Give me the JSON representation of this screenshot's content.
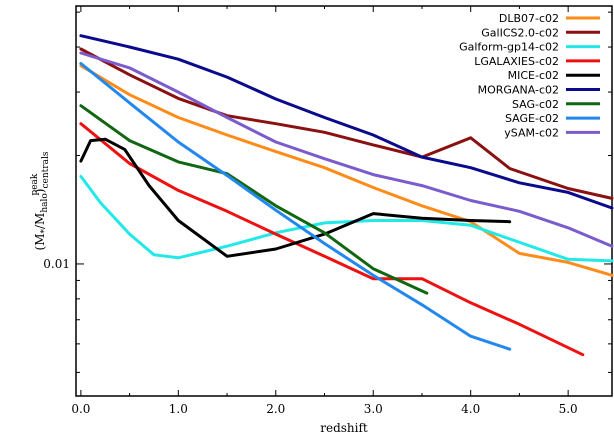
{
  "chart_data": {
    "type": "line",
    "xlabel": "redshift",
    "ylabel": "(M*/Mhalo)peak centrals",
    "ylabel_parts": {
      "base": "(M",
      "star": "*",
      "mid": "/M",
      "halo": "halo",
      "close": ")",
      "sup": "peak",
      "sub": "centrals"
    },
    "x_ticks": [
      0.0,
      1.0,
      2.0,
      3.0,
      4.0,
      5.0
    ],
    "x_tick_labels": [
      "0.0",
      "1.0",
      "2.0",
      "3.0",
      "4.0",
      "5.0"
    ],
    "y_ticks": [
      0.01
    ],
    "y_tick_labels": [
      "0.01"
    ],
    "xlim": [
      -0.05,
      5.45
    ],
    "ylim": [
      0.0043,
      0.052
    ],
    "yscale": "log",
    "grid": false,
    "legend": "top-right",
    "series": [
      {
        "name": "DLB07-c02",
        "color": "#ff8c1a",
        "x": [
          0.0,
          0.5,
          1.0,
          1.5,
          2.0,
          2.5,
          3.0,
          3.5,
          4.0,
          4.5,
          5.0,
          5.45
        ],
        "y": [
          0.0355,
          0.0295,
          0.0255,
          0.0228,
          0.0205,
          0.0185,
          0.0163,
          0.0145,
          0.0131,
          0.0107,
          0.0101,
          0.0093
        ]
      },
      {
        "name": "GalICS2.0-c02",
        "color": "#8b1010",
        "x": [
          0.0,
          0.5,
          1.0,
          1.5,
          2.0,
          2.5,
          3.0,
          3.5,
          4.0,
          4.4,
          5.0,
          5.45
        ],
        "y": [
          0.0395,
          0.0335,
          0.0288,
          0.0258,
          0.0245,
          0.0232,
          0.0214,
          0.0198,
          0.0224,
          0.0184,
          0.0162,
          0.0152
        ]
      },
      {
        "name": "Galform-gp14-c02",
        "color": "#22e8e8",
        "x": [
          0.0,
          0.2,
          0.5,
          0.75,
          1.0,
          1.5,
          2.0,
          2.5,
          3.0,
          3.5,
          4.0,
          5.0,
          5.45
        ],
        "y": [
          0.0175,
          0.0148,
          0.0121,
          0.0106,
          0.0104,
          0.0112,
          0.0122,
          0.013,
          0.0132,
          0.0132,
          0.0128,
          0.0103,
          0.0102
        ]
      },
      {
        "name": "LGALAXIES-c02",
        "color": "#ee1111",
        "x": [
          0.0,
          0.5,
          1.0,
          1.5,
          2.0,
          2.5,
          3.0,
          3.5,
          4.0,
          4.5,
          5.15
        ],
        "y": [
          0.0245,
          0.019,
          0.016,
          0.014,
          0.0121,
          0.0105,
          0.0091,
          0.0091,
          0.0078,
          0.0068,
          0.0056
        ]
      },
      {
        "name": "MICE-c02",
        "color": "#000000",
        "x": [
          0.0,
          0.1,
          0.25,
          0.45,
          0.7,
          1.0,
          1.5,
          2.0,
          2.5,
          3.0,
          3.5,
          4.0,
          4.4
        ],
        "y": [
          0.0193,
          0.022,
          0.0222,
          0.0208,
          0.0165,
          0.0132,
          0.0105,
          0.011,
          0.0121,
          0.0138,
          0.0134,
          0.0132,
          0.0131
        ]
      },
      {
        "name": "MORGANA-c02",
        "color": "#0a0a8c",
        "x": [
          0.0,
          0.2,
          0.5,
          1.0,
          1.5,
          2.0,
          2.5,
          3.0,
          3.5,
          4.0,
          4.5,
          5.0,
          5.45
        ],
        "y": [
          0.043,
          0.0418,
          0.04,
          0.037,
          0.033,
          0.0287,
          0.0255,
          0.0228,
          0.0198,
          0.0185,
          0.0168,
          0.0158,
          0.0143
        ]
      },
      {
        "name": "SAG-c02",
        "color": "#116611",
        "x": [
          0.0,
          0.5,
          1.0,
          1.5,
          2.0,
          2.5,
          3.0,
          3.55
        ],
        "y": [
          0.0275,
          0.022,
          0.0192,
          0.0178,
          0.0145,
          0.0122,
          0.0097,
          0.0083
        ]
      },
      {
        "name": "SAGE-c02",
        "color": "#2288ee",
        "x": [
          0.0,
          0.5,
          1.0,
          1.5,
          2.0,
          2.5,
          3.0,
          3.5,
          4.0,
          4.4
        ],
        "y": [
          0.036,
          0.028,
          0.0218,
          0.0176,
          0.0141,
          0.0114,
          0.0093,
          0.0077,
          0.0063,
          0.0058
        ]
      },
      {
        "name": "ySAM-c02",
        "color": "#7a5ccc",
        "x": [
          0.0,
          0.5,
          1.0,
          1.5,
          2.0,
          2.5,
          3.0,
          3.5,
          4.0,
          4.5,
          5.0,
          5.45
        ],
        "y": [
          0.0385,
          0.035,
          0.03,
          0.0255,
          0.0218,
          0.0196,
          0.0177,
          0.0165,
          0.015,
          0.014,
          0.0126,
          0.0112
        ]
      }
    ]
  }
}
